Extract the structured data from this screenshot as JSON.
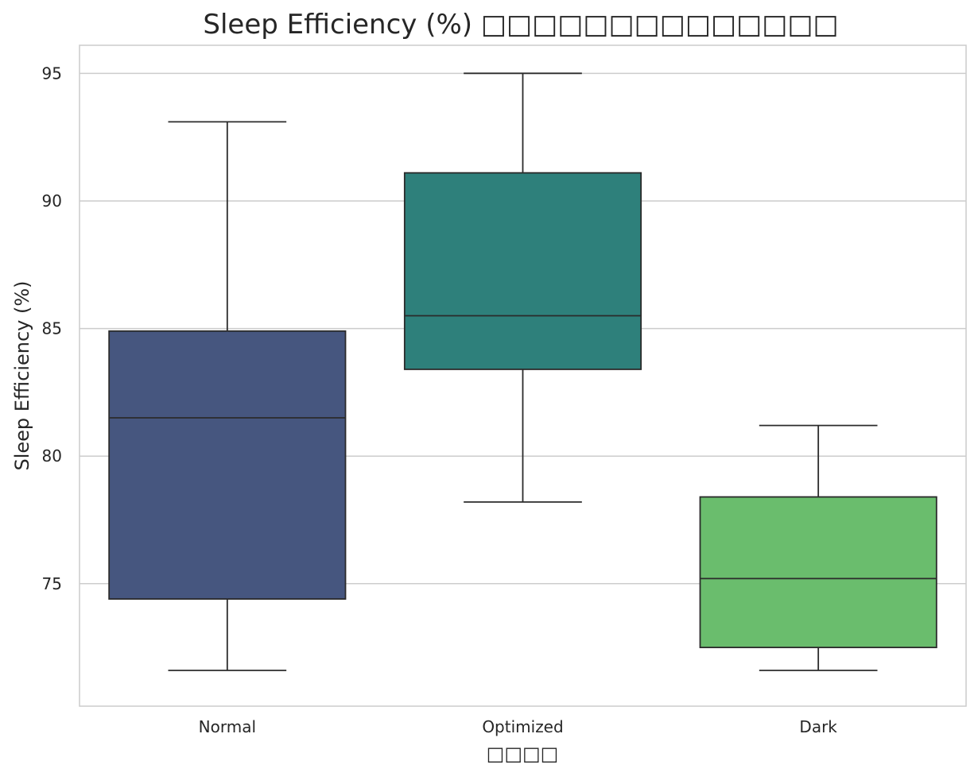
{
  "chart_data": {
    "type": "box",
    "title": "Sleep Efficiency (%) □□□□□□□□□□□□□□",
    "xlabel": "□□□□",
    "ylabel": "Sleep Efficiency (%)",
    "ylim": [
      70.2,
      96.1
    ],
    "yticks": [
      75,
      80,
      85,
      90,
      95
    ],
    "grid": true,
    "categories": [
      "Normal",
      "Optimized",
      "Dark"
    ],
    "boxes": [
      {
        "category": "Normal",
        "whisker_low": 71.6,
        "q1": 74.4,
        "median": 81.5,
        "q3": 84.9,
        "whisker_high": 93.1,
        "color": "#46567f"
      },
      {
        "category": "Optimized",
        "whisker_low": 78.2,
        "q1": 83.4,
        "median": 85.5,
        "q3": 91.1,
        "whisker_high": 95.0,
        "color": "#2e807b"
      },
      {
        "category": "Dark",
        "whisker_low": 71.6,
        "q1": 72.5,
        "median": 75.2,
        "q3": 78.4,
        "whisker_high": 81.2,
        "color": "#6abd6d"
      }
    ]
  }
}
